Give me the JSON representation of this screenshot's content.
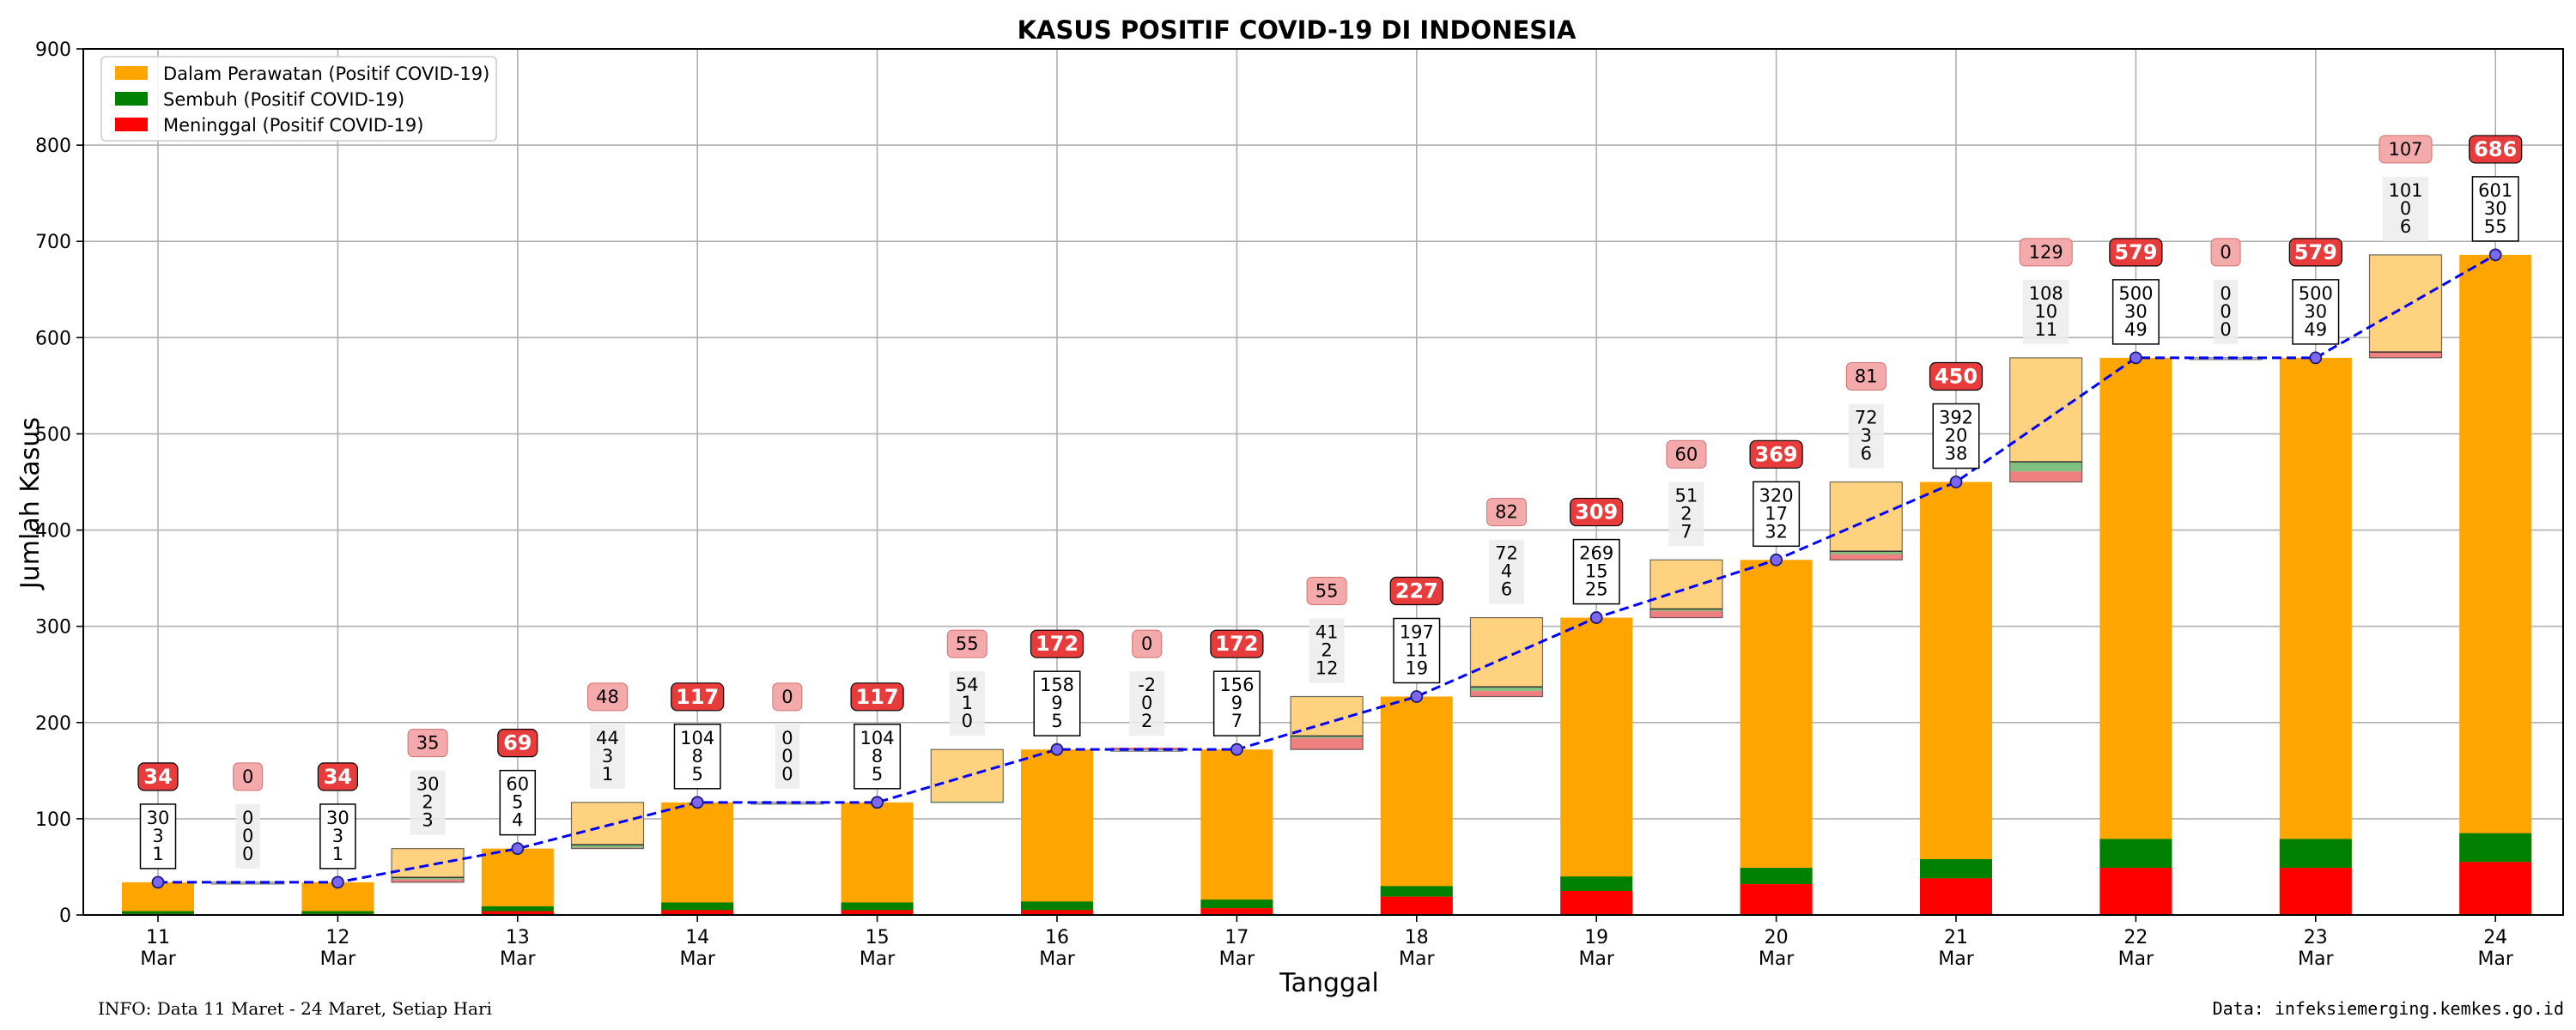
{
  "chart_data": {
    "type": "bar",
    "title": "KASUS POSITIF COVID-19 DI INDONESIA",
    "xlabel": "Tanggal",
    "ylabel": "Jumlah Kasus",
    "ylim": [
      0,
      900
    ],
    "yticks": [
      "0",
      "100",
      "200",
      "300",
      "400",
      "500",
      "600",
      "700",
      "800",
      "900"
    ],
    "grid": true,
    "legend_position": "top-left",
    "categories": [
      "11 Mar",
      "12 Mar",
      "13 Mar",
      "14 Mar",
      "15 Mar",
      "16 Mar",
      "17 Mar",
      "18 Mar",
      "19 Mar",
      "20 Mar",
      "21 Mar",
      "22 Mar",
      "23 Mar",
      "24 Mar"
    ],
    "x_day_labels": [
      "11",
      "12",
      "13",
      "14",
      "15",
      "16",
      "17",
      "18",
      "19",
      "20",
      "21",
      "22",
      "23",
      "24"
    ],
    "x_month_label": "Mar",
    "series": [
      {
        "name": "Dalam Perawatan (Positif COVID-19)",
        "color": "#ffa500",
        "values": [
          30,
          30,
          60,
          104,
          104,
          158,
          156,
          197,
          269,
          320,
          392,
          500,
          500,
          601
        ]
      },
      {
        "name": "Sembuh (Positif COVID-19)",
        "color": "#008000",
        "values": [
          3,
          3,
          5,
          8,
          8,
          9,
          9,
          11,
          15,
          17,
          20,
          30,
          30,
          30
        ]
      },
      {
        "name": "Meninggal (Positif COVID-19)",
        "color": "#ff0000",
        "values": [
          1,
          1,
          4,
          5,
          5,
          5,
          7,
          19,
          25,
          32,
          38,
          49,
          49,
          55
        ]
      }
    ],
    "totals": [
      34,
      34,
      69,
      117,
      117,
      172,
      172,
      227,
      309,
      369,
      450,
      579,
      579,
      686
    ],
    "total_labels": [
      "34",
      "34",
      "69",
      "117",
      "117",
      "172",
      "172",
      "227",
      "309",
      "369",
      "450",
      "579",
      "579",
      "686"
    ],
    "day_labels": [
      [
        "30",
        "3",
        "1"
      ],
      [
        "30",
        "3",
        "1"
      ],
      [
        "60",
        "5",
        "4"
      ],
      [
        "104",
        "8",
        "5"
      ],
      [
        "104",
        "8",
        "5"
      ],
      [
        "158",
        "9",
        "5"
      ],
      [
        "156",
        "9",
        "7"
      ],
      [
        "197",
        "11",
        "19"
      ],
      [
        "269",
        "15",
        "25"
      ],
      [
        "320",
        "17",
        "32"
      ],
      [
        "392",
        "20",
        "38"
      ],
      [
        "500",
        "30",
        "49"
      ],
      [
        "500",
        "30",
        "49"
      ],
      [
        "601",
        "30",
        "55"
      ]
    ],
    "increments": [
      {
        "total": 0,
        "total_label": "0",
        "perawatan": 0,
        "sembuh": 0,
        "meninggal": 0,
        "labels": [
          "0",
          "0",
          "0"
        ]
      },
      {
        "total": 35,
        "total_label": "35",
        "perawatan": 30,
        "sembuh": 2,
        "meninggal": 3,
        "labels": [
          "30",
          "2",
          "3"
        ]
      },
      {
        "total": 48,
        "total_label": "48",
        "perawatan": 44,
        "sembuh": 3,
        "meninggal": 1,
        "labels": [
          "44",
          "3",
          "1"
        ]
      },
      {
        "total": 0,
        "total_label": "0",
        "perawatan": 0,
        "sembuh": 0,
        "meninggal": 0,
        "labels": [
          "0",
          "0",
          "0"
        ]
      },
      {
        "total": 55,
        "total_label": "55",
        "perawatan": 54,
        "sembuh": 1,
        "meninggal": 0,
        "labels": [
          "54",
          "1",
          "0"
        ]
      },
      {
        "total": 0,
        "total_label": "0",
        "perawatan": -2,
        "sembuh": 0,
        "meninggal": 2,
        "labels": [
          "-2",
          "0",
          "2"
        ]
      },
      {
        "total": 55,
        "total_label": "55",
        "perawatan": 41,
        "sembuh": 2,
        "meninggal": 12,
        "labels": [
          "41",
          "2",
          "12"
        ]
      },
      {
        "total": 82,
        "total_label": "82",
        "perawatan": 72,
        "sembuh": 4,
        "meninggal": 6,
        "labels": [
          "72",
          "4",
          "6"
        ]
      },
      {
        "total": 60,
        "total_label": "60",
        "perawatan": 51,
        "sembuh": 2,
        "meninggal": 7,
        "labels": [
          "51",
          "2",
          "7"
        ]
      },
      {
        "total": 81,
        "total_label": "81",
        "perawatan": 72,
        "sembuh": 3,
        "meninggal": 6,
        "labels": [
          "72",
          "3",
          "6"
        ]
      },
      {
        "total": 129,
        "total_label": "129",
        "perawatan": 108,
        "sembuh": 10,
        "meninggal": 11,
        "labels": [
          "108",
          "10",
          "11"
        ]
      },
      {
        "total": 0,
        "total_label": "0",
        "perawatan": 0,
        "sembuh": 0,
        "meninggal": 0,
        "labels": [
          "0",
          "0",
          "0"
        ]
      },
      {
        "total": 107,
        "total_label": "107",
        "perawatan": 101,
        "sembuh": 0,
        "meninggal": 6,
        "labels": [
          "101",
          "0",
          "6"
        ]
      }
    ],
    "trend_line": {
      "style": "dashed",
      "color": "#0000ff",
      "marker_fill": "#7b68ee"
    },
    "colors": {
      "total_badge": "#e83c3c",
      "increment_badge": "#f4aaaa",
      "increment_label_bg": "#ececec"
    }
  },
  "footer": {
    "info": "INFO: Data 11 Maret - 24 Maret, Setiap Hari",
    "source": "Data: infeksiemerging.kemkes.go.id"
  }
}
